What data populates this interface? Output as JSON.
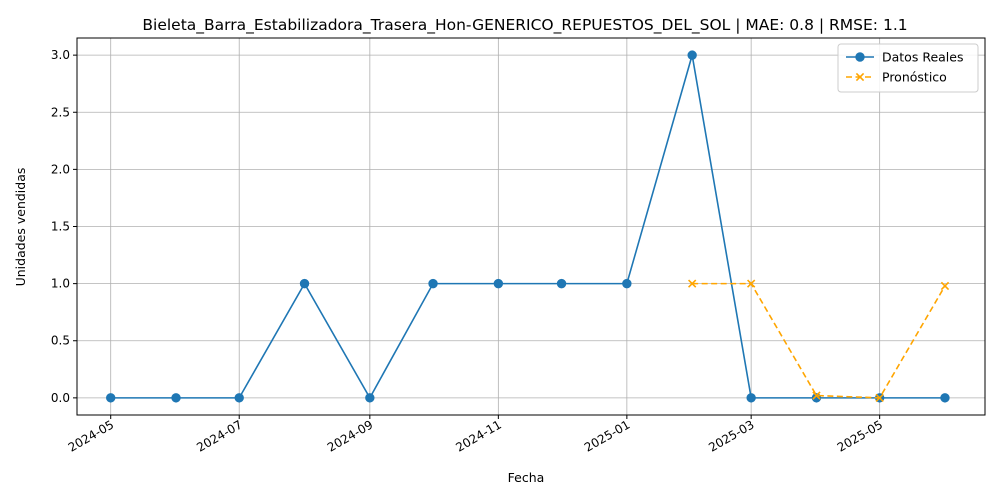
{
  "chart_data": {
    "type": "line",
    "title": "Bieleta_Barra_Estabilizadora_Trasera_Hon-GENERICO_REPUESTOS_DEL_SOL | MAE: 0.8 | RMSE: 1.1",
    "xlabel": "Fecha",
    "ylabel": "Unidades vendidas",
    "xlim": [
      "2024-04-15",
      "2025-06-20"
    ],
    "ylim": [
      -0.15,
      3.15
    ],
    "x_ticks": [
      "2024-05",
      "2024-07",
      "2024-09",
      "2024-11",
      "2025-01",
      "2025-03",
      "2025-05"
    ],
    "y_ticks": [
      "0.0",
      "0.5",
      "1.0",
      "1.5",
      "2.0",
      "2.5",
      "3.0"
    ],
    "grid": true,
    "legend_position": "top-right",
    "series": [
      {
        "name": "Datos Reales",
        "color": "#1f77b4",
        "marker": "circle",
        "line": "solid",
        "x": [
          "2024-05-01",
          "2024-06-01",
          "2024-07-01",
          "2024-08-01",
          "2024-09-01",
          "2024-10-01",
          "2024-11-01",
          "2024-12-01",
          "2025-01-01",
          "2025-02-01",
          "2025-03-01",
          "2025-04-01",
          "2025-05-01",
          "2025-06-01"
        ],
        "values": [
          0,
          0,
          0,
          1,
          0,
          1,
          1,
          1,
          1,
          3,
          0,
          0,
          0,
          0
        ]
      },
      {
        "name": "Pronóstico",
        "color": "#ffa500",
        "marker": "x",
        "line": "dashed",
        "x": [
          "2025-02-01",
          "2025-03-01",
          "2025-04-01",
          "2025-05-01",
          "2025-06-01"
        ],
        "values": [
          1.0,
          1.0,
          0.02,
          0.0,
          0.98
        ]
      }
    ]
  }
}
